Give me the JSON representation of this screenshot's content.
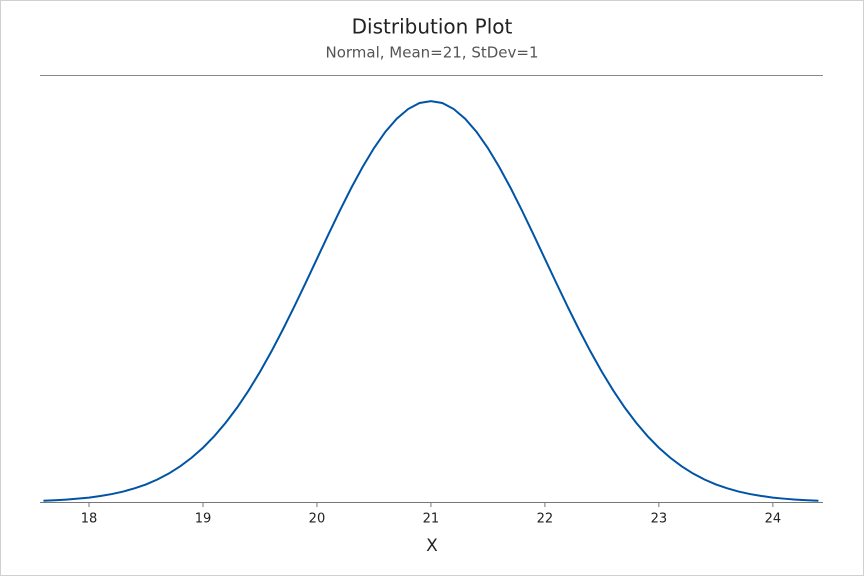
{
  "chart_data": {
    "type": "line",
    "title": "Distribution Plot",
    "subtitle": "Normal, Mean=21, StDev=1",
    "x_label": "X",
    "x": [
      17.6,
      17.7,
      17.8,
      17.9,
      18.0,
      18.1,
      18.2,
      18.3,
      18.4,
      18.5,
      18.6,
      18.7,
      18.8,
      18.9,
      19.0,
      19.1,
      19.2,
      19.3,
      19.4,
      19.5,
      19.6,
      19.7,
      19.8,
      19.9,
      20.0,
      20.1,
      20.2,
      20.3,
      20.4,
      20.5,
      20.6,
      20.7,
      20.8,
      20.9,
      21.0,
      21.1,
      21.2,
      21.3,
      21.4,
      21.5,
      21.6,
      21.7,
      21.8,
      21.9,
      22.0,
      22.1,
      22.2,
      22.3,
      22.4,
      22.5,
      22.6,
      22.7,
      22.8,
      22.9,
      23.0,
      23.1,
      23.2,
      23.3,
      23.4,
      23.5,
      23.6,
      23.7,
      23.8,
      23.9,
      24.0,
      24.1,
      24.2,
      24.3,
      24.4
    ],
    "series": [
      {
        "color": "#0054a6",
        "values": [
          0.0012,
          0.0017,
          0.0024,
          0.0033,
          0.0044,
          0.006,
          0.0079,
          0.0104,
          0.0136,
          0.0175,
          0.0224,
          0.0283,
          0.0355,
          0.044,
          0.054,
          0.0656,
          0.079,
          0.094,
          0.1109,
          0.1295,
          0.1497,
          0.1714,
          0.1942,
          0.2179,
          0.242,
          0.2661,
          0.2897,
          0.3123,
          0.3332,
          0.3521,
          0.3683,
          0.3814,
          0.391,
          0.397,
          0.3989,
          0.397,
          0.391,
          0.3814,
          0.3683,
          0.3521,
          0.3332,
          0.3123,
          0.2897,
          0.2661,
          0.242,
          0.2179,
          0.1942,
          0.1714,
          0.1497,
          0.1295,
          0.1109,
          0.094,
          0.079,
          0.0656,
          0.054,
          0.044,
          0.0355,
          0.0283,
          0.0224,
          0.0175,
          0.0136,
          0.0104,
          0.0079,
          0.006,
          0.0044,
          0.0033,
          0.0024,
          0.0017,
          0.0012
        ]
      }
    ],
    "xlim": [
      17.57,
      24.44
    ],
    "xticks": [
      18,
      19,
      20,
      21,
      22,
      23,
      24
    ],
    "ylim": [
      0,
      0.4
    ]
  }
}
